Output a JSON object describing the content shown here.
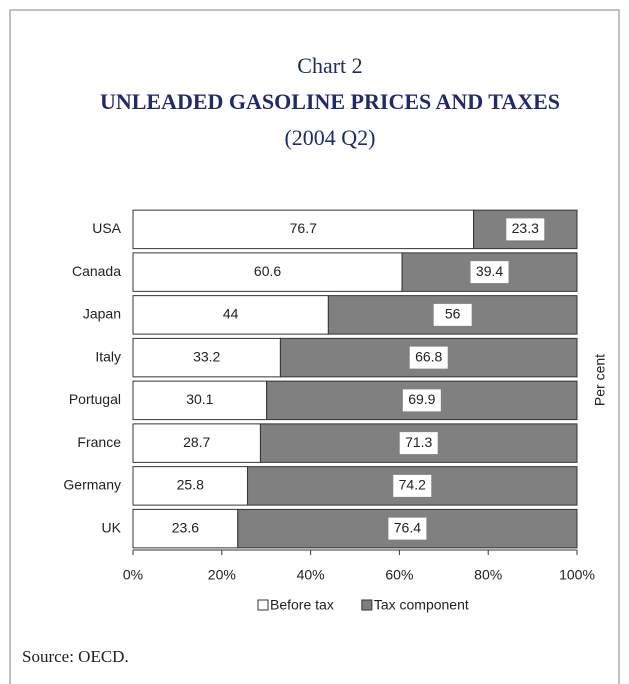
{
  "chart_data": {
    "type": "stacked_bar_horizontal",
    "label": "Chart 2",
    "title": "UNLEADED GASOLINE PRICES AND TAXES",
    "subtitle": "(2004 Q2)",
    "categories": [
      "USA",
      "Canada",
      "Japan",
      "Italy",
      "Portugal",
      "France",
      "Germany",
      "UK"
    ],
    "series": [
      {
        "name": "Before tax",
        "color": "#ffffff",
        "values": [
          76.7,
          60.6,
          44,
          33.2,
          30.1,
          28.7,
          25.8,
          23.6
        ]
      },
      {
        "name": "Tax component",
        "color": "#808080",
        "values": [
          23.3,
          39.4,
          56,
          66.8,
          69.9,
          71.3,
          74.2,
          76.4
        ]
      }
    ],
    "xlim": [
      0,
      100
    ],
    "xticks": [
      {
        "value": 0,
        "label": "0%"
      },
      {
        "value": 20,
        "label": "20%"
      },
      {
        "value": 40,
        "label": "40%"
      },
      {
        "value": 60,
        "label": "60%"
      },
      {
        "value": 80,
        "label": "80%"
      },
      {
        "value": 100,
        "label": "100%"
      }
    ],
    "axis_label": "Per cent",
    "legend": "bottom",
    "source": "Source: OECD."
  }
}
